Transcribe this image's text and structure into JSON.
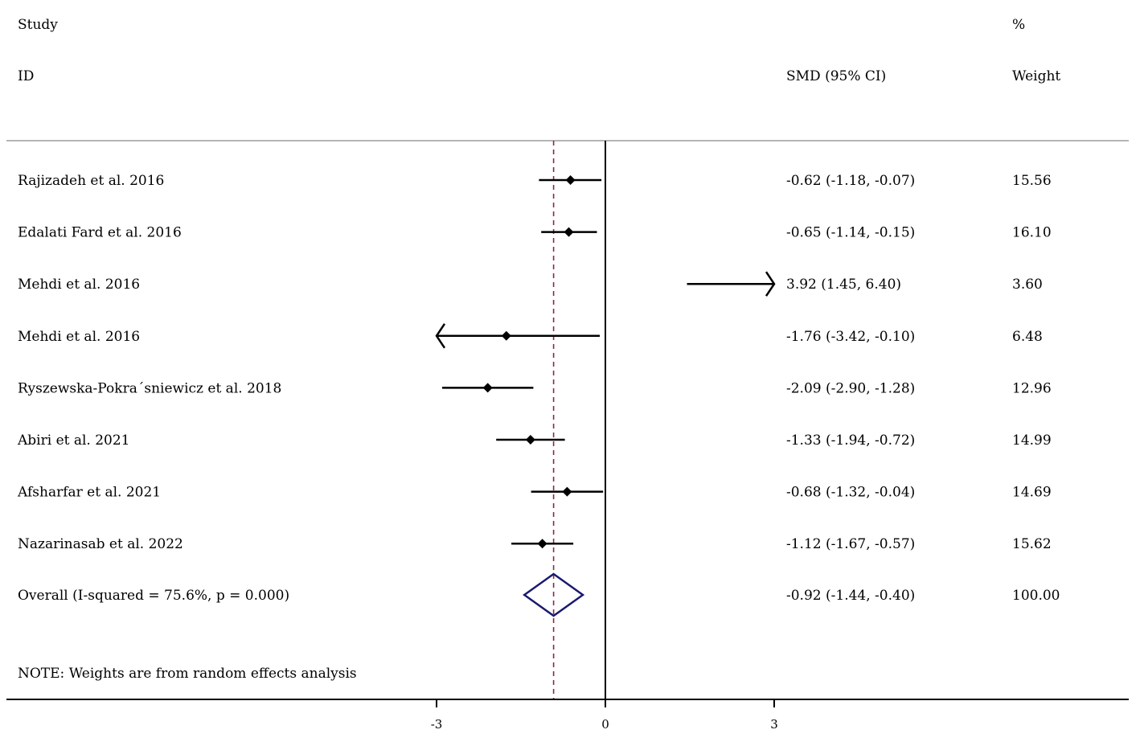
{
  "headers": {
    "study_line1": "Study",
    "study_line2": "ID",
    "smd": "SMD (95% CI)",
    "weight_line1": "%",
    "weight_line2": "Weight"
  },
  "note": "NOTE: Weights are from random effects analysis",
  "colors": {
    "point": "#000000",
    "ci_line": "#000000",
    "null_line": "#000000",
    "overall_line": "#8b2a3a",
    "diamond": "#1a1a6e",
    "separator": "#b4b4b4"
  },
  "chart_data": {
    "type": "forest",
    "xlabel": "",
    "xlim": [
      -3,
      3
    ],
    "x_ticks": [
      -3,
      0,
      3
    ],
    "x_tick_labels": [
      "-3",
      "0",
      "3"
    ],
    "null_value": 0,
    "studies": [
      {
        "label": "Rajizadeh et al. 2016",
        "smd": -0.62,
        "lower": -1.18,
        "upper": -0.07,
        "weight": 15.56,
        "ci_text": "-0.62 (-1.18, -0.07)",
        "weight_text": "15.56"
      },
      {
        "label": "Edalati Fard et al. 2016",
        "smd": -0.65,
        "lower": -1.14,
        "upper": -0.15,
        "weight": 16.1,
        "ci_text": "-0.65 (-1.14, -0.15)",
        "weight_text": "16.10"
      },
      {
        "label": "Mehdi et al. 2016",
        "smd": 3.92,
        "lower": 1.45,
        "upper": 6.4,
        "weight": 3.6,
        "ci_text": "3.92 (1.45, 6.40)",
        "weight_text": "3.60"
      },
      {
        "label": "Mehdi et al. 2016",
        "smd": -1.76,
        "lower": -3.42,
        "upper": -0.1,
        "weight": 6.48,
        "ci_text": "-1.76 (-3.42, -0.10)",
        "weight_text": "6.48"
      },
      {
        "label": "Ryszewska-Pokra´sniewicz et al. 2018",
        "smd": -2.09,
        "lower": -2.9,
        "upper": -1.28,
        "weight": 12.96,
        "ci_text": "-2.09 (-2.90, -1.28)",
        "weight_text": "12.96"
      },
      {
        "label": "Abiri et al. 2021",
        "smd": -1.33,
        "lower": -1.94,
        "upper": -0.72,
        "weight": 14.99,
        "ci_text": "-1.33 (-1.94, -0.72)",
        "weight_text": "14.99"
      },
      {
        "label": "Afsharfar et al. 2021",
        "smd": -0.68,
        "lower": -1.32,
        "upper": -0.04,
        "weight": 14.69,
        "ci_text": "-0.68 (-1.32, -0.04)",
        "weight_text": "14.69"
      },
      {
        "label": "Nazarinasab et al. 2022",
        "smd": -1.12,
        "lower": -1.67,
        "upper": -0.57,
        "weight": 15.62,
        "ci_text": "-1.12 (-1.67, -0.57)",
        "weight_text": "15.62"
      }
    ],
    "overall": {
      "label": "Overall  (I-squared = 75.6%, p = 0.000)",
      "smd": -0.92,
      "lower": -1.44,
      "upper": -0.4,
      "weight": 100.0,
      "ci_text": "-0.92 (-1.44, -0.40)",
      "weight_text": "100.00"
    }
  }
}
